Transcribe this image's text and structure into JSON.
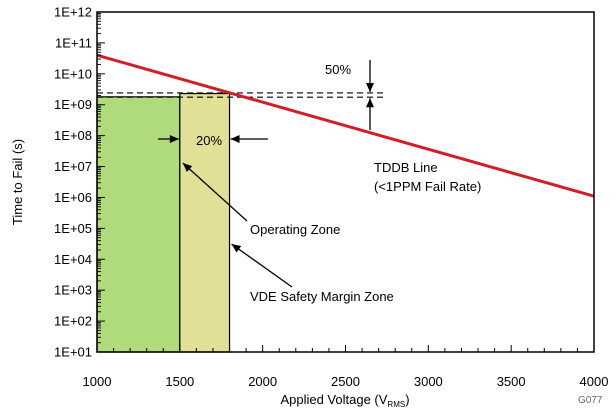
{
  "chart_data": {
    "type": "line",
    "xlabel": "Applied Voltage (V",
    "xlabel_sub": "RMS",
    "xlabel_close": ")",
    "ylabel": "Time to Fail (s)",
    "xlim": [
      1000,
      4000
    ],
    "ylim_log10": [
      1,
      12
    ],
    "x_scale": "linear",
    "y_scale": "log",
    "x_ticks": [
      1000,
      1500,
      2000,
      2500,
      3000,
      3500,
      4000
    ],
    "x_tick_labels": [
      "1000",
      "1500",
      "2000",
      "2500",
      "3000",
      "3500",
      "4000"
    ],
    "y_tick_labels": [
      "1E+01",
      "1E+02",
      "1E+03",
      "1E+04",
      "1E+05",
      "1E+06",
      "1E+07",
      "1E+08",
      "1E+09",
      "1E+10",
      "1E+11",
      "1E+12"
    ],
    "series": [
      {
        "name": "TDDB Line",
        "color": "#d01f26",
        "x": [
          1000,
          4000
        ],
        "y": [
          40000000000.0,
          1100000.0
        ]
      }
    ],
    "zones": [
      {
        "name": "Operating Zone",
        "color": "#b0db7c",
        "x_range": [
          1000,
          1500
        ],
        "y_top": 1800000000.0
      },
      {
        "name": "VDE Safety Margin Zone",
        "color": "#e2e097",
        "x_range": [
          1500,
          1800
        ],
        "y_top": 2300000000.0
      }
    ],
    "reference_lines": [
      {
        "style": "dashed",
        "y": 2400000000.0,
        "x_range": [
          1000,
          2750
        ]
      },
      {
        "style": "dashed",
        "y": 1750000000.0,
        "x_range": [
          1000,
          2750
        ]
      }
    ],
    "annotations": {
      "pct_50": "50%",
      "pct_20": "20%",
      "tddb_line_1": "TDDB Line",
      "tddb_line_2": "(<1PPM Fail Rate)",
      "operating_zone": "Operating Zone",
      "vde_zone": "VDE Safety Margin Zone"
    },
    "figure_id": "G077",
    "grid": false,
    "legend": "none"
  }
}
